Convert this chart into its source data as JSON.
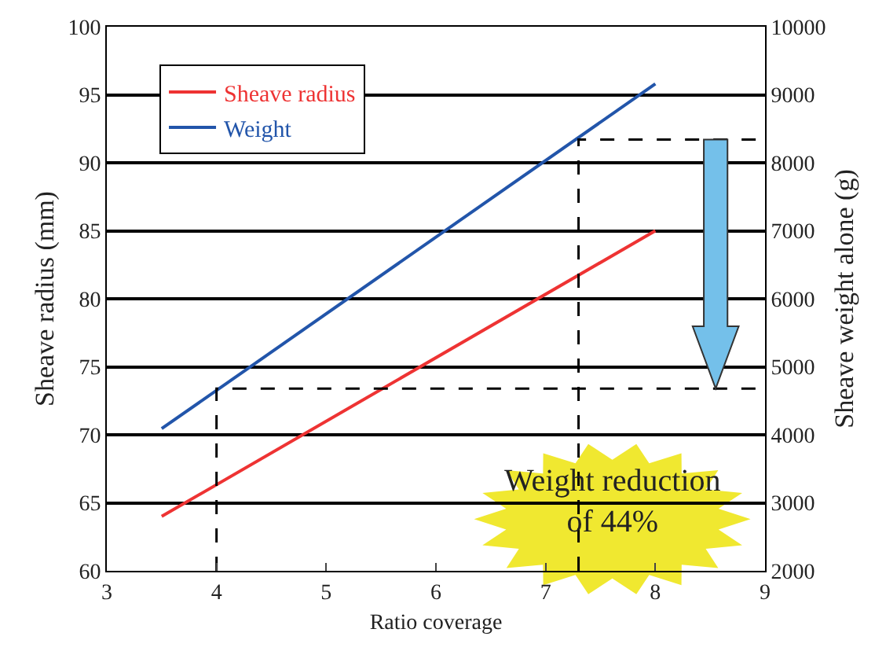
{
  "chart_data": {
    "type": "line",
    "xlabel": "Ratio coverage",
    "ylabel": "Sheave radius (mm)",
    "y2label": "Sheave weight alone (g)",
    "xlim": [
      3,
      9
    ],
    "xticks": [
      3,
      4,
      5,
      6,
      7,
      8,
      9
    ],
    "ylim": [
      60,
      100
    ],
    "yticks": [
      60,
      65,
      70,
      75,
      80,
      85,
      90,
      95,
      100
    ],
    "y2lim": [
      2000,
      10000
    ],
    "y2ticks": [
      2000,
      3000,
      4000,
      5000,
      6000,
      7000,
      8000,
      9000,
      10000
    ],
    "grid": "y",
    "legend": "top left",
    "marker": "none",
    "series": [
      {
        "name": "Sheave radius",
        "color": "#ee3333",
        "x": [
          3.5,
          8
        ],
        "values": [
          64,
          85
        ]
      },
      {
        "name": "Weight",
        "color": "#2255aa",
        "x": [
          3.5,
          8
        ],
        "values": [
          4090,
          9160
        ],
        "axis": "y2"
      },
      {
        "color": "#000000",
        "x": [
          4,
          4,
          9
        ],
        "values": [
          2000,
          4680,
          4680
        ],
        "axis": "y2",
        "line_style": "dashed"
      },
      {
        "color": "#000000",
        "x": [
          7.3,
          7.3,
          9
        ],
        "values": [
          2000,
          8340,
          8340
        ],
        "axis": "y2",
        "line_style": "dashed"
      }
    ],
    "annotations": [
      "Weight reduction\nof 44%"
    ]
  }
}
